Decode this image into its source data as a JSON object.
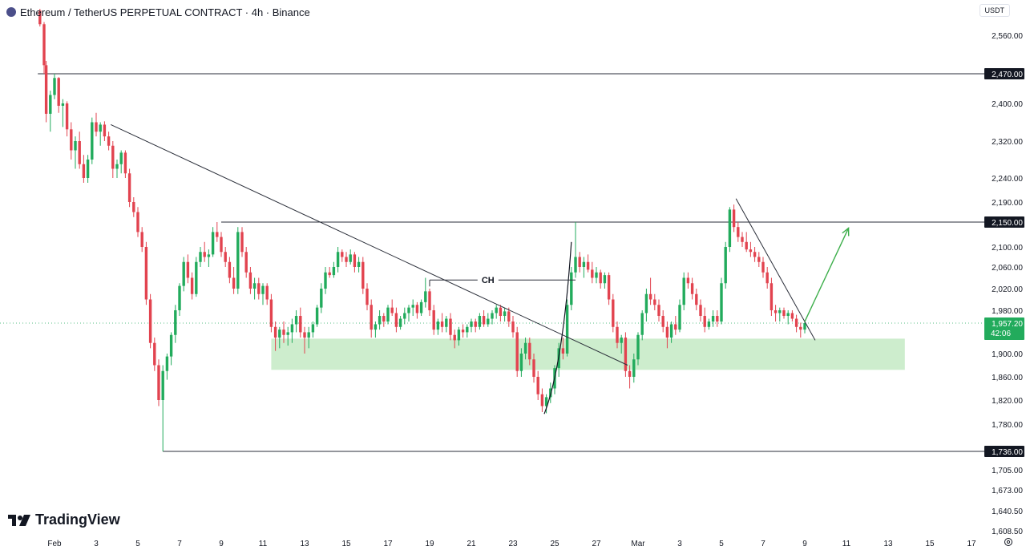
{
  "header": {
    "title": "Ethereum / TetherUS PERPETUAL CONTRACT · 4h · Binance",
    "currency": "USDT"
  },
  "logo": {
    "text": "TradingView"
  },
  "colors": {
    "up": "#22ab5c",
    "down": "#e2434f",
    "zone": "#c8ebc8",
    "arrow": "#3cae4a"
  },
  "chart_data": {
    "type": "candlestick",
    "timeframe": "4h",
    "y_ticks": [
      "2,560.00",
      "2,400.00",
      "2,320.00",
      "2,240.00",
      "2,190.00",
      "2,100.00",
      "2,060.00",
      "2,020.00",
      "1,980.00",
      "1,900.00",
      "1,860.00",
      "1,820.00",
      "1,780.00",
      "1,705.00",
      "1,673.00",
      "1,640.50",
      "1,608.50"
    ],
    "x_ticks": [
      {
        "label": "Feb",
        "day": 1
      },
      {
        "label": "3",
        "day": 3
      },
      {
        "label": "5",
        "day": 5
      },
      {
        "label": "7",
        "day": 7
      },
      {
        "label": "9",
        "day": 9
      },
      {
        "label": "11",
        "day": 11
      },
      {
        "label": "13",
        "day": 13
      },
      {
        "label": "15",
        "day": 15
      },
      {
        "label": "17",
        "day": 17
      },
      {
        "label": "19",
        "day": 19
      },
      {
        "label": "21",
        "day": 21
      },
      {
        "label": "23",
        "day": 23
      },
      {
        "label": "25",
        "day": 25
      },
      {
        "label": "27",
        "day": 27
      },
      {
        "label": "Mar",
        "day": 29
      },
      {
        "label": "3",
        "day": 31
      },
      {
        "label": "5",
        "day": 33
      },
      {
        "label": "7",
        "day": 35
      },
      {
        "label": "9",
        "day": 37
      },
      {
        "label": "11",
        "day": 39
      },
      {
        "label": "13",
        "day": 41
      },
      {
        "label": "15",
        "day": 43
      },
      {
        "label": "17",
        "day": 45
      }
    ],
    "levels": [
      {
        "price": 2470,
        "label": "2,470.00"
      },
      {
        "price": 2150,
        "label": "2,150.00"
      },
      {
        "price": 1736,
        "label": "1,736.00"
      }
    ],
    "current_price": {
      "price": 1957.2,
      "label": "1,957.20",
      "countdown": "42:06"
    },
    "annotations": [
      {
        "text": "CH",
        "price": 2036
      }
    ],
    "demand_zone": {
      "top": 1928,
      "bottom": 1872,
      "from_day": 11.4,
      "to_day": 41.8
    },
    "trendlines": [
      {
        "p1": {
          "day": 3.7,
          "price": 2355
        },
        "p2": {
          "day": 28.5,
          "price": 1880
        }
      },
      {
        "p1": {
          "day": 33.7,
          "price": 2197
        },
        "p2": {
          "day": 37.5,
          "price": 1925
        }
      }
    ],
    "curve": {
      "start": {
        "day": 24.5,
        "price": 1797
      },
      "ctrl": {
        "day": 25.4,
        "price": 1880
      },
      "end": {
        "day": 25.8,
        "price": 2110
      }
    },
    "projection_arrow": {
      "from": {
        "day": 37.0,
        "price": 1960
      },
      "to": {
        "day": 39.1,
        "price": 2138
      }
    },
    "candles": [
      [
        0.3,
        2616,
        2620,
        2580,
        2585
      ],
      [
        0.5,
        2585,
        2590,
        2470,
        2490
      ],
      [
        0.6,
        2490,
        2500,
        2360,
        2378
      ],
      [
        0.8,
        2378,
        2430,
        2340,
        2420
      ],
      [
        1.0,
        2420,
        2470,
        2410,
        2460
      ],
      [
        1.2,
        2460,
        2462,
        2380,
        2395
      ],
      [
        1.4,
        2395,
        2410,
        2350,
        2400
      ],
      [
        1.6,
        2400,
        2405,
        2330,
        2345
      ],
      [
        1.8,
        2345,
        2360,
        2280,
        2300
      ],
      [
        2.0,
        2300,
        2330,
        2260,
        2320
      ],
      [
        2.2,
        2320,
        2340,
        2260,
        2270
      ],
      [
        2.4,
        2270,
        2290,
        2230,
        2240
      ],
      [
        2.6,
        2240,
        2290,
        2230,
        2280
      ],
      [
        2.8,
        2280,
        2370,
        2270,
        2360
      ],
      [
        3.0,
        2360,
        2380,
        2330,
        2340
      ],
      [
        3.2,
        2340,
        2360,
        2310,
        2355
      ],
      [
        3.4,
        2355,
        2362,
        2320,
        2330
      ],
      [
        3.6,
        2330,
        2340,
        2300,
        2310
      ],
      [
        3.8,
        2310,
        2320,
        2240,
        2260
      ],
      [
        4.0,
        2260,
        2280,
        2240,
        2270
      ],
      [
        4.2,
        2270,
        2300,
        2250,
        2295
      ],
      [
        4.4,
        2295,
        2300,
        2240,
        2250
      ],
      [
        4.6,
        2250,
        2260,
        2180,
        2190
      ],
      [
        4.8,
        2190,
        2200,
        2160,
        2170
      ],
      [
        5.0,
        2170,
        2180,
        2120,
        2130
      ],
      [
        5.2,
        2130,
        2140,
        2090,
        2100
      ],
      [
        5.4,
        2100,
        2110,
        1990,
        2000
      ],
      [
        5.6,
        2000,
        2010,
        1910,
        1920
      ],
      [
        5.8,
        1920,
        1930,
        1870,
        1880
      ],
      [
        6.0,
        1880,
        1890,
        1810,
        1820
      ],
      [
        6.2,
        1820,
        1880,
        1736,
        1870
      ],
      [
        6.4,
        1870,
        1900,
        1855,
        1895
      ],
      [
        6.6,
        1895,
        1940,
        1880,
        1935
      ],
      [
        6.8,
        1935,
        1990,
        1920,
        1980
      ],
      [
        7.0,
        1980,
        2030,
        1970,
        2025
      ],
      [
        7.2,
        2025,
        2080,
        2015,
        2070
      ],
      [
        7.4,
        2070,
        2085,
        2030,
        2040
      ],
      [
        7.6,
        2040,
        2050,
        2000,
        2010
      ],
      [
        7.8,
        2010,
        2080,
        2005,
        2070
      ],
      [
        8.0,
        2070,
        2100,
        2060,
        2090
      ],
      [
        8.2,
        2090,
        2110,
        2070,
        2080
      ],
      [
        8.4,
        2080,
        2095,
        2060,
        2085
      ],
      [
        8.6,
        2085,
        2140,
        2080,
        2130
      ],
      [
        8.8,
        2130,
        2150,
        2110,
        2120
      ],
      [
        9.0,
        2120,
        2130,
        2080,
        2090
      ],
      [
        9.2,
        2090,
        2100,
        2060,
        2070
      ],
      [
        9.4,
        2070,
        2080,
        2030,
        2040
      ],
      [
        9.6,
        2040,
        2060,
        2010,
        2020
      ],
      [
        9.8,
        2020,
        2140,
        2010,
        2130
      ],
      [
        10.0,
        2130,
        2140,
        2080,
        2090
      ],
      [
        10.2,
        2090,
        2100,
        2040,
        2050
      ],
      [
        10.4,
        2050,
        2060,
        2010,
        2020
      ],
      [
        10.6,
        2020,
        2040,
        2000,
        2030
      ],
      [
        10.8,
        2030,
        2040,
        2000,
        2010
      ],
      [
        11.0,
        2010,
        2030,
        1990,
        2025
      ],
      [
        11.2,
        2025,
        2030,
        1990,
        2000
      ],
      [
        11.4,
        2000,
        2010,
        1940,
        1950
      ],
      [
        11.6,
        1950,
        1960,
        1905,
        1930
      ],
      [
        11.8,
        1930,
        1950,
        1910,
        1945
      ],
      [
        12.0,
        1945,
        1960,
        1920,
        1935
      ],
      [
        12.2,
        1935,
        1950,
        1915,
        1940
      ],
      [
        12.4,
        1940,
        1965,
        1920,
        1955
      ],
      [
        12.6,
        1955,
        1980,
        1940,
        1970
      ],
      [
        12.8,
        1970,
        1985,
        1930,
        1940
      ],
      [
        13.0,
        1940,
        1950,
        1900,
        1930
      ],
      [
        13.2,
        1930,
        1950,
        1910,
        1940
      ],
      [
        13.4,
        1940,
        1960,
        1930,
        1955
      ],
      [
        13.6,
        1955,
        1990,
        1950,
        1985
      ],
      [
        13.8,
        1985,
        2030,
        1975,
        2020
      ],
      [
        14.0,
        2020,
        2060,
        2010,
        2050
      ],
      [
        14.2,
        2050,
        2060,
        2040,
        2045
      ],
      [
        14.4,
        2045,
        2070,
        2040,
        2060
      ],
      [
        14.6,
        2060,
        2100,
        2050,
        2090
      ],
      [
        14.8,
        2090,
        2095,
        2070,
        2080
      ],
      [
        15.0,
        2080,
        2090,
        2060,
        2070
      ],
      [
        15.2,
        2070,
        2095,
        2065,
        2085
      ],
      [
        15.4,
        2085,
        2090,
        2050,
        2060
      ],
      [
        15.6,
        2060,
        2080,
        2050,
        2070
      ],
      [
        15.8,
        2070,
        2080,
        2010,
        2020
      ],
      [
        16.0,
        2020,
        2030,
        1980,
        1990
      ],
      [
        16.2,
        1990,
        2000,
        1930,
        1945
      ],
      [
        16.4,
        1945,
        1960,
        1930,
        1955
      ],
      [
        16.6,
        1955,
        1980,
        1945,
        1970
      ],
      [
        16.8,
        1970,
        1975,
        1950,
        1960
      ],
      [
        17.0,
        1960,
        1990,
        1955,
        1985
      ],
      [
        17.2,
        1985,
        2000,
        1970,
        1975
      ],
      [
        17.4,
        1975,
        1985,
        1940,
        1950
      ],
      [
        17.6,
        1950,
        1970,
        1945,
        1965
      ],
      [
        17.8,
        1965,
        1985,
        1955,
        1975
      ],
      [
        18.0,
        1975,
        1990,
        1960,
        1985
      ],
      [
        18.2,
        1985,
        2000,
        1970,
        1990
      ],
      [
        18.4,
        1990,
        1995,
        1965,
        1975
      ],
      [
        18.6,
        1975,
        2000,
        1970,
        1995
      ],
      [
        18.8,
        1995,
        2040,
        1985,
        2015
      ],
      [
        19.0,
        2015,
        2020,
        1970,
        1980
      ],
      [
        19.2,
        1980,
        1990,
        1935,
        1945
      ],
      [
        19.4,
        1945,
        1965,
        1935,
        1960
      ],
      [
        19.6,
        1960,
        1975,
        1940,
        1950
      ],
      [
        19.8,
        1950,
        1970,
        1940,
        1965
      ],
      [
        20.0,
        1965,
        1975,
        1925,
        1935
      ],
      [
        20.2,
        1935,
        1945,
        1910,
        1925
      ],
      [
        20.4,
        1925,
        1950,
        1915,
        1945
      ],
      [
        20.6,
        1945,
        1955,
        1930,
        1940
      ],
      [
        20.8,
        1940,
        1955,
        1930,
        1950
      ],
      [
        21.0,
        1950,
        1965,
        1940,
        1960
      ],
      [
        21.2,
        1960,
        1965,
        1940,
        1950
      ],
      [
        21.4,
        1950,
        1975,
        1945,
        1970
      ],
      [
        21.6,
        1970,
        1980,
        1950,
        1955
      ],
      [
        21.8,
        1955,
        1975,
        1950,
        1965
      ],
      [
        22.0,
        1965,
        1980,
        1955,
        1975
      ],
      [
        22.2,
        1975,
        1990,
        1965,
        1985
      ],
      [
        22.4,
        1985,
        1990,
        1960,
        1970
      ],
      [
        22.6,
        1970,
        1985,
        1960,
        1978
      ],
      [
        22.8,
        1978,
        1985,
        1950,
        1960
      ],
      [
        23.0,
        1960,
        1970,
        1930,
        1940
      ],
      [
        23.2,
        1940,
        1950,
        1860,
        1870
      ],
      [
        23.4,
        1870,
        1910,
        1860,
        1900
      ],
      [
        23.6,
        1900,
        1930,
        1890,
        1920
      ],
      [
        23.8,
        1920,
        1930,
        1880,
        1890
      ],
      [
        24.0,
        1890,
        1900,
        1850,
        1860
      ],
      [
        24.2,
        1860,
        1870,
        1820,
        1830
      ],
      [
        24.4,
        1830,
        1840,
        1800,
        1810
      ],
      [
        24.6,
        1810,
        1830,
        1798,
        1825
      ],
      [
        24.8,
        1825,
        1850,
        1815,
        1840
      ],
      [
        25.0,
        1840,
        1880,
        1830,
        1875
      ],
      [
        25.2,
        1875,
        1920,
        1860,
        1910
      ],
      [
        25.4,
        1910,
        1930,
        1890,
        1900
      ],
      [
        25.6,
        1900,
        2000,
        1895,
        1990
      ],
      [
        25.8,
        1990,
        2060,
        1980,
        2050
      ],
      [
        26.0,
        2050,
        2150,
        2040,
        2080
      ],
      [
        26.2,
        2080,
        2090,
        2050,
        2060
      ],
      [
        26.4,
        2060,
        2080,
        2040,
        2070
      ],
      [
        26.6,
        2070,
        2085,
        2050,
        2055
      ],
      [
        26.8,
        2055,
        2070,
        2030,
        2040
      ],
      [
        27.0,
        2040,
        2060,
        2030,
        2050
      ],
      [
        27.2,
        2050,
        2055,
        2020,
        2030
      ],
      [
        27.4,
        2030,
        2050,
        2020,
        2045
      ],
      [
        27.6,
        2045,
        2050,
        1990,
        2000
      ],
      [
        27.8,
        2000,
        2010,
        1940,
        1950
      ],
      [
        28.0,
        1950,
        1960,
        1910,
        1920
      ],
      [
        28.2,
        1920,
        1935,
        1900,
        1930
      ],
      [
        28.4,
        1930,
        1940,
        1860,
        1870
      ],
      [
        28.6,
        1870,
        1880,
        1840,
        1860
      ],
      [
        28.8,
        1860,
        1900,
        1850,
        1890
      ],
      [
        29.0,
        1890,
        1940,
        1880,
        1935
      ],
      [
        29.2,
        1935,
        1980,
        1925,
        1975
      ],
      [
        29.4,
        1975,
        2020,
        1960,
        2010
      ],
      [
        29.6,
        2010,
        2040,
        1990,
        2000
      ],
      [
        29.8,
        2000,
        2010,
        1980,
        1990
      ],
      [
        30.0,
        1990,
        2000,
        1960,
        1970
      ],
      [
        30.2,
        1970,
        1980,
        1940,
        1950
      ],
      [
        30.4,
        1950,
        1960,
        1910,
        1930
      ],
      [
        30.6,
        1930,
        1960,
        1920,
        1955
      ],
      [
        30.8,
        1955,
        1970,
        1935,
        1945
      ],
      [
        31.0,
        1945,
        2000,
        1940,
        1990
      ],
      [
        31.2,
        1990,
        2050,
        1980,
        2040
      ],
      [
        31.4,
        2040,
        2050,
        2020,
        2030
      ],
      [
        31.6,
        2030,
        2040,
        2000,
        2010
      ],
      [
        31.8,
        2010,
        2020,
        1980,
        1990
      ],
      [
        32.0,
        1990,
        2000,
        1960,
        1970
      ],
      [
        32.2,
        1970,
        1985,
        1940,
        1950
      ],
      [
        32.4,
        1950,
        1965,
        1945,
        1960
      ],
      [
        32.6,
        1960,
        1980,
        1950,
        1970
      ],
      [
        32.8,
        1970,
        1980,
        1950,
        1960
      ],
      [
        33.0,
        1960,
        2040,
        1955,
        2030
      ],
      [
        33.2,
        2030,
        2110,
        2020,
        2100
      ],
      [
        33.4,
        2100,
        2180,
        2090,
        2175
      ],
      [
        33.6,
        2175,
        2185,
        2130,
        2140
      ],
      [
        33.8,
        2140,
        2150,
        2110,
        2120
      ],
      [
        34.0,
        2120,
        2130,
        2100,
        2110
      ],
      [
        34.2,
        2110,
        2130,
        2090,
        2095
      ],
      [
        34.4,
        2095,
        2110,
        2080,
        2090
      ],
      [
        34.6,
        2090,
        2100,
        2070,
        2080
      ],
      [
        34.8,
        2080,
        2090,
        2060,
        2070
      ],
      [
        35.0,
        2070,
        2080,
        2040,
        2050
      ],
      [
        35.2,
        2050,
        2060,
        2020,
        2030
      ],
      [
        35.4,
        2030,
        2040,
        1970,
        1980
      ],
      [
        35.6,
        1980,
        1990,
        1960,
        1975
      ],
      [
        35.8,
        1975,
        1985,
        1960,
        1980
      ],
      [
        36.0,
        1980,
        1985,
        1965,
        1970
      ],
      [
        36.2,
        1970,
        1980,
        1955,
        1975
      ],
      [
        36.4,
        1975,
        1980,
        1960,
        1965
      ],
      [
        36.6,
        1965,
        1972,
        1940,
        1950
      ],
      [
        36.8,
        1950,
        1958,
        1930,
        1945
      ],
      [
        37.0,
        1945,
        1962,
        1938,
        1957.2
      ]
    ]
  }
}
